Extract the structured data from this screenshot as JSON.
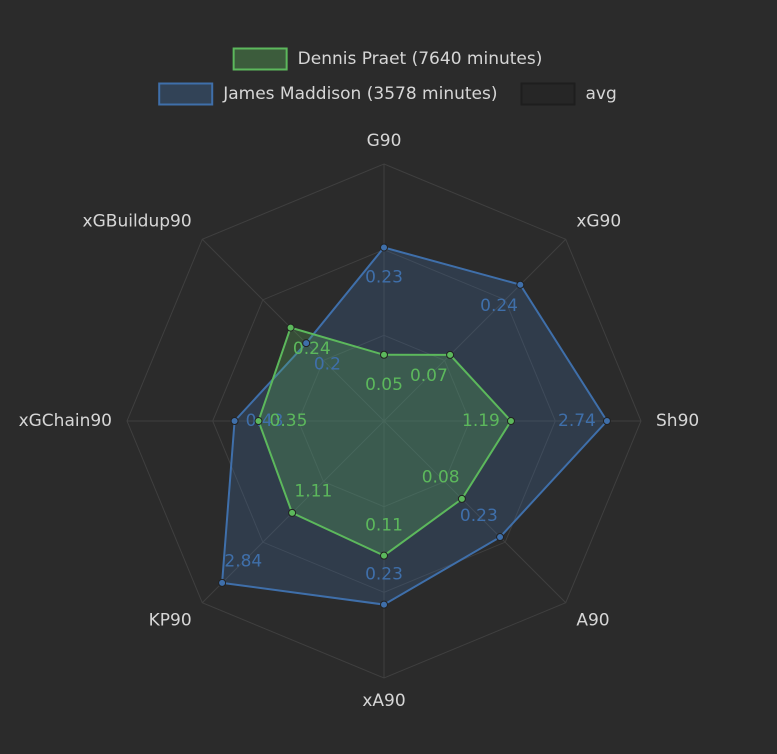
{
  "chart_data": {
    "type": "radar",
    "categories": [
      "G90",
      "xG90",
      "Sh90",
      "A90",
      "xA90",
      "KP90",
      "xGChain90",
      "xGBuildup90"
    ],
    "ranges": [
      [
        -0.061,
        0.37
      ],
      [
        -0.09,
        0.35
      ],
      [
        -0.86,
        3.29
      ],
      [
        -0.226,
        0.488
      ],
      [
        -0.22,
        0.41
      ],
      [
        -1.16,
        3.33
      ],
      [
        -0.07,
        0.79
      ],
      [
        0,
        0.467
      ]
    ],
    "series": [
      {
        "name": "Dennis Praet (7640 minutes)",
        "color": "#5cb85c",
        "values": [
          0.05,
          0.07,
          1.19,
          0.08,
          0.11,
          1.11,
          0.35,
          0.24
        ]
      },
      {
        "name": "James Maddison (3578 minutes)",
        "color": "#3f6faa",
        "values": [
          0.23,
          0.24,
          2.74,
          0.23,
          0.23,
          2.84,
          0.43,
          0.2
        ]
      },
      {
        "name": "avg",
        "color": "#262626"
      }
    ]
  }
}
